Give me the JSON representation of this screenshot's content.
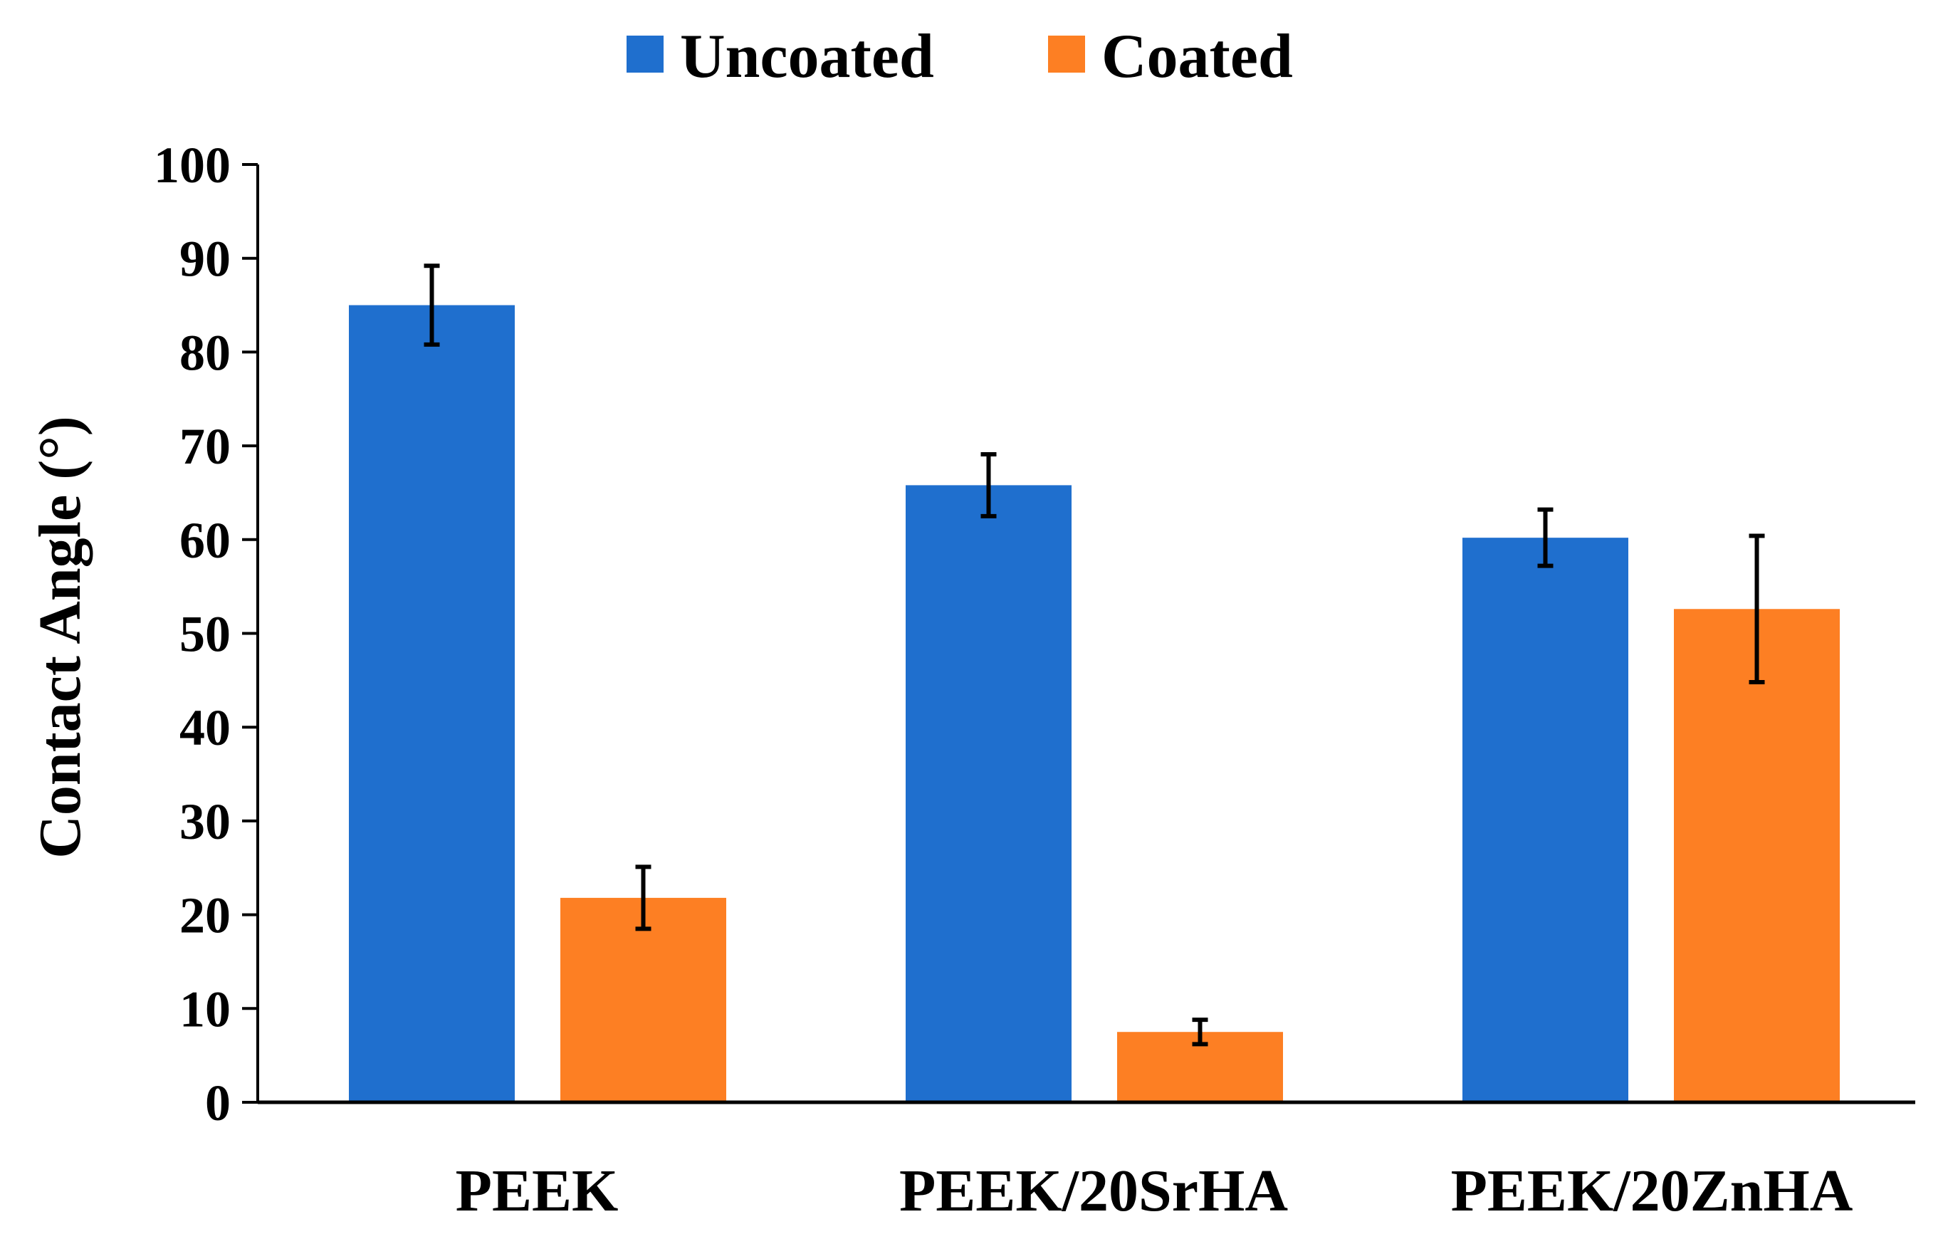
{
  "chart_data": {
    "type": "bar",
    "title": "",
    "xlabel": "",
    "ylabel": "Contact Angle (°)",
    "ylim": [
      0,
      100
    ],
    "yticks": [
      0,
      10,
      20,
      30,
      40,
      50,
      60,
      70,
      80,
      90,
      100
    ],
    "grid": false,
    "legend_position": "top-center",
    "categories": [
      "PEEK",
      "PEEK/20SrHA",
      "PEEK/20ZnHA"
    ],
    "series": [
      {
        "name": "Uncoated",
        "color": "#1f6fce",
        "values": [
          85,
          65.8,
          60.2
        ],
        "errors": [
          4.2,
          3.3,
          3.0
        ]
      },
      {
        "name": "Coated",
        "color": "#fd7f23",
        "values": [
          21.8,
          7.5,
          52.6
        ],
        "errors": [
          3.3,
          1.3,
          7.8
        ]
      }
    ]
  }
}
